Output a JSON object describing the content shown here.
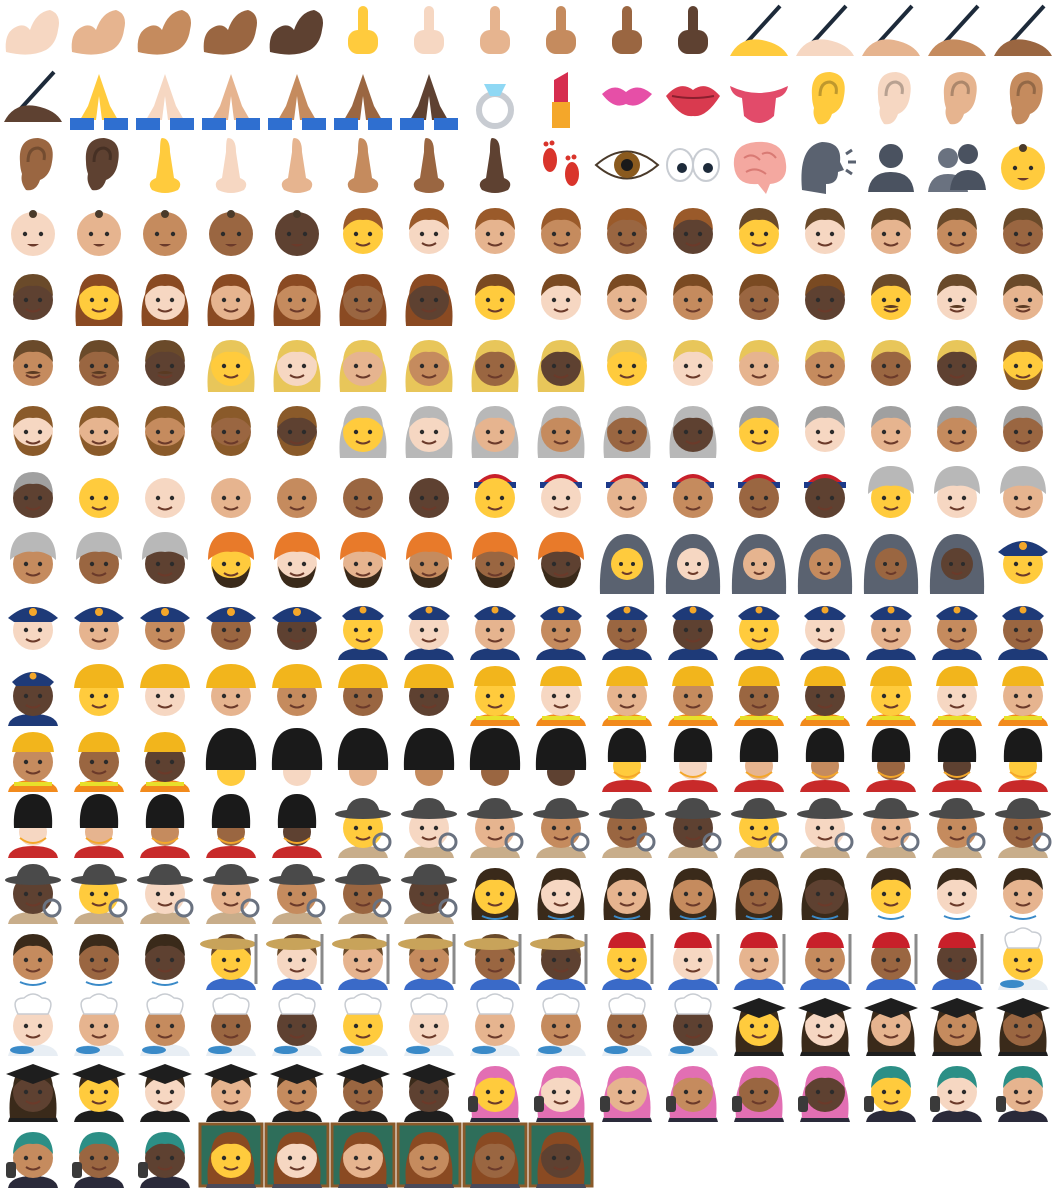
{
  "sheet": {
    "columns": 16,
    "palette": {
      "skin_tones": [
        "#FFCB3D",
        "#F6D7C2",
        "#E6B48F",
        "#C58B5E",
        "#9A6641",
        "#5E4131"
      ],
      "gold": "#F4A72A",
      "police_blue": "#1E3A78",
      "guard_black": "#1A1A1A",
      "grad_black": "#1E1E1E",
      "detective_grey": "#4A4A4A",
      "farmer_straw": "#C8A35A",
      "chef_white": "#FFFFFF",
      "teacher_board": "#2E6E5A",
      "rocker_pink": "#E26FB3",
      "rocker_teal": "#2C8F86"
    },
    "groups": [
      {
        "icon": "flexed-biceps-icon",
        "count": 5,
        "start_tone": 1
      },
      {
        "icon": "middle-finger-icon",
        "count": 6,
        "start_tone": 0
      },
      {
        "icon": "writing-hand-icon",
        "count": 6,
        "start_tone": 0
      },
      {
        "icon": "folded-hands-icon",
        "count": 6,
        "start_tone": 0
      },
      {
        "icon": "ring-icon",
        "count": 1
      },
      {
        "icon": "lipstick-icon",
        "count": 1
      },
      {
        "icon": "kiss-mark-icon",
        "count": 1
      },
      {
        "icon": "mouth-icon",
        "count": 1
      },
      {
        "icon": "tongue-icon",
        "count": 1
      },
      {
        "icon": "ear-icon",
        "count": 6,
        "start_tone": 0
      },
      {
        "icon": "nose-icon",
        "count": 6,
        "start_tone": 0
      },
      {
        "icon": "footprints-icon",
        "count": 1
      },
      {
        "icon": "eye-icon",
        "count": 1
      },
      {
        "icon": "eyes-icon",
        "count": 1
      },
      {
        "icon": "brain-icon",
        "count": 1
      },
      {
        "icon": "speaking-head-icon",
        "count": 1
      },
      {
        "icon": "bust-in-silhouette-icon",
        "count": 1
      },
      {
        "icon": "busts-in-silhouette-icon",
        "count": 1
      },
      {
        "icon": "baby-icon",
        "count": 6,
        "start_tone": 0
      },
      {
        "icon": "child-icon",
        "count": 6,
        "start_tone": 0
      },
      {
        "icon": "boy-icon",
        "count": 6,
        "start_tone": 0
      },
      {
        "icon": "woman-icon",
        "count": 6,
        "start_tone": 0
      },
      {
        "icon": "man-icon",
        "count": 6,
        "start_tone": 0
      },
      {
        "icon": "man-mustache-icon",
        "count": 6,
        "start_tone": 0
      },
      {
        "icon": "blond-woman-icon",
        "count": 6,
        "start_tone": 0
      },
      {
        "icon": "blond-man-icon",
        "count": 6,
        "start_tone": 0
      },
      {
        "icon": "bearded-person-icon",
        "count": 6,
        "start_tone": 0
      },
      {
        "icon": "older-woman-icon",
        "count": 6,
        "start_tone": 0
      },
      {
        "icon": "older-person-icon",
        "count": 6,
        "start_tone": 0
      },
      {
        "icon": "older-man-icon",
        "count": 6,
        "start_tone": 0
      },
      {
        "icon": "man-with-cap-icon",
        "count": 6,
        "start_tone": 0
      },
      {
        "icon": "woman-with-turban-icon",
        "count": 6,
        "start_tone": 0
      },
      {
        "icon": "man-with-turban-icon",
        "count": 6,
        "start_tone": 0
      },
      {
        "icon": "woman-with-headscarf-icon",
        "count": 6,
        "start_tone": 0
      },
      {
        "icon": "police-officer-icon",
        "count": 6,
        "start_tone": 0
      },
      {
        "icon": "woman-police-officer-icon",
        "count": 6,
        "start_tone": 0
      },
      {
        "icon": "man-police-officer-icon",
        "count": 6,
        "start_tone": 0
      },
      {
        "icon": "construction-worker-icon",
        "count": 6,
        "start_tone": 0
      },
      {
        "icon": "woman-construction-worker-icon",
        "count": 6,
        "start_tone": 0
      },
      {
        "icon": "man-construction-worker-icon",
        "count": 6,
        "start_tone": 0
      },
      {
        "icon": "guard-icon",
        "count": 6,
        "start_tone": 0
      },
      {
        "icon": "woman-guard-icon",
        "count": 6,
        "start_tone": 0
      },
      {
        "icon": "man-guard-icon",
        "count": 6,
        "start_tone": 0
      },
      {
        "icon": "detective-icon",
        "count": 6,
        "start_tone": 0
      },
      {
        "icon": "woman-detective-icon",
        "count": 6,
        "start_tone": 0
      },
      {
        "icon": "man-detective-icon",
        "count": 6,
        "start_tone": 0
      },
      {
        "icon": "woman-health-worker-icon",
        "count": 6,
        "start_tone": 0
      },
      {
        "icon": "man-health-worker-icon",
        "count": 6,
        "start_tone": 0
      },
      {
        "icon": "woman-farmer-icon",
        "count": 6,
        "start_tone": 0
      },
      {
        "icon": "man-farmer-icon",
        "count": 6,
        "start_tone": 0
      },
      {
        "icon": "woman-cook-icon",
        "count": 6,
        "start_tone": 0
      },
      {
        "icon": "man-cook-icon",
        "count": 6,
        "start_tone": 0
      },
      {
        "icon": "woman-student-icon",
        "count": 6,
        "start_tone": 0
      },
      {
        "icon": "man-student-icon",
        "count": 6,
        "start_tone": 0
      },
      {
        "icon": "woman-singer-icon",
        "count": 6,
        "start_tone": 0
      },
      {
        "icon": "man-singer-icon",
        "count": 6,
        "start_tone": 0
      },
      {
        "icon": "woman-teacher-icon",
        "count": 6,
        "start_tone": 0
      }
    ]
  }
}
